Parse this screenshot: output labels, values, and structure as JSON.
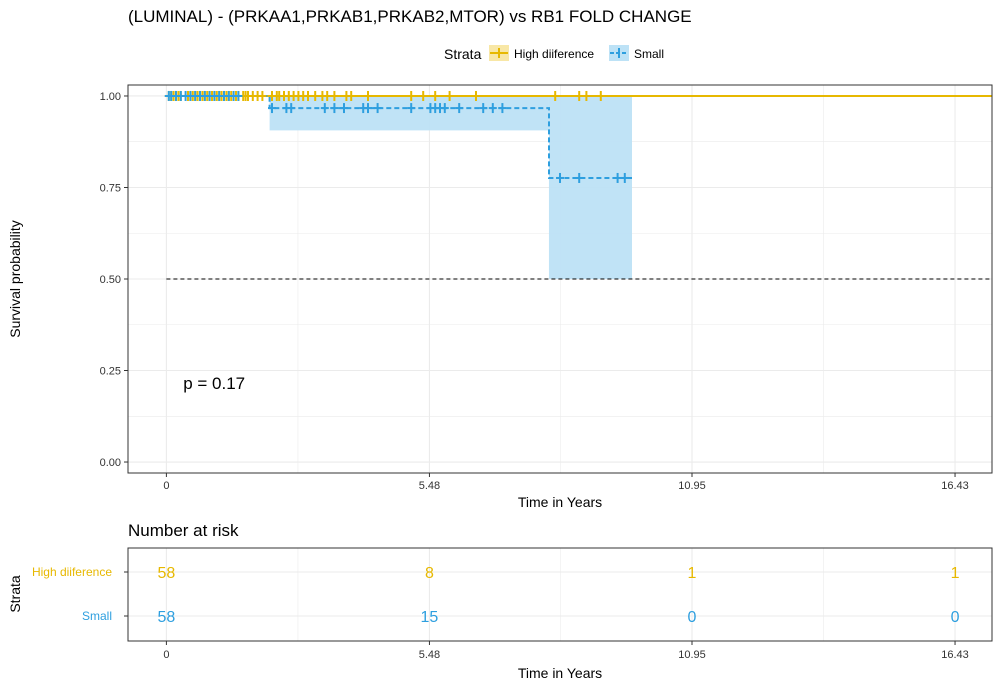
{
  "colors": {
    "high": "#E7B800",
    "small": "#2E9FDF",
    "small_ci": "#BDE2F6",
    "high_ci": "#F8E7A6",
    "grid": "#ebebeb"
  },
  "chart_data": {
    "type": "line",
    "subtype": "kaplan-meier",
    "title": "(LUMINAL) - (PRKAA1,PRKAB1,PRKAB2,MTOR) vs RB1 FOLD CHANGE",
    "xlabel": "Time in Years",
    "ylabel": "Survival probability",
    "xlim": [
      -0.8,
      17.2
    ],
    "ylim": [
      -0.03,
      1.03
    ],
    "x_ticks": [
      0,
      5.48,
      10.95,
      16.43
    ],
    "x_tick_labels": [
      "0",
      "5.48",
      "10.95",
      "16.43"
    ],
    "y_ticks": [
      0,
      0.25,
      0.5,
      0.75,
      1.0
    ],
    "y_tick_labels": [
      "0.00",
      "0.25",
      "0.50",
      "0.75",
      "1.00"
    ],
    "grid": true,
    "legend": {
      "title": "Strata",
      "position": "top",
      "entries": [
        "High diiference",
        "Small"
      ]
    },
    "reference_line": {
      "y": 0.5,
      "style": "dashed"
    },
    "pvalue_text": "p = 0.17",
    "pvalue_pos": {
      "x": 0.35,
      "y": 0.2
    },
    "series": [
      {
        "name": "High diiference",
        "color_key": "high",
        "dash": false,
        "steps": [
          [
            0,
            1.0
          ],
          [
            17.2,
            1.0
          ]
        ],
        "ci": [],
        "censors": [
          0.05,
          0.1,
          0.15,
          0.2,
          0.25,
          0.3,
          0.45,
          0.5,
          0.55,
          0.6,
          0.65,
          0.7,
          0.75,
          0.8,
          0.85,
          0.9,
          0.95,
          1.0,
          1.05,
          1.1,
          1.15,
          1.2,
          1.25,
          1.3,
          1.35,
          1.45,
          1.5,
          1.6,
          1.65,
          1.7,
          1.8,
          1.9,
          2.0,
          2.2,
          2.3,
          2.35,
          2.45,
          2.55,
          2.65,
          2.75,
          2.85,
          2.95,
          3.1,
          3.25,
          3.35,
          3.5,
          3.75,
          3.85,
          4.2,
          5.1,
          5.35,
          5.6,
          5.9,
          6.45,
          8.1,
          8.6,
          8.75,
          9.05
        ]
      },
      {
        "name": "Small",
        "color_key": "small",
        "dash": true,
        "steps": [
          [
            0,
            1.0
          ],
          [
            2.15,
            1.0
          ],
          [
            2.15,
            0.967
          ],
          [
            7.97,
            0.967
          ],
          [
            7.97,
            0.776
          ],
          [
            9.7,
            0.776
          ]
        ],
        "ci": [
          [
            0,
            1.0,
            1.0
          ],
          [
            2.15,
            0.906,
            1.0
          ],
          [
            7.97,
            0.5,
            1.0
          ],
          [
            9.7,
            0.5,
            1.0
          ]
        ],
        "censors": [
          0.05,
          0.1,
          0.2,
          0.3,
          0.4,
          0.5,
          0.6,
          0.7,
          0.8,
          0.9,
          1.0,
          1.1,
          1.2,
          1.3,
          1.4,
          1.5,
          2.2,
          2.5,
          2.6,
          3.3,
          3.5,
          3.7,
          4.1,
          4.2,
          4.4,
          5.1,
          5.5,
          5.6,
          5.7,
          5.8,
          6.1,
          6.6,
          6.8,
          7.0,
          8.2,
          8.6,
          9.4,
          9.55
        ]
      }
    ]
  },
  "risk_table": {
    "title": "Number at risk",
    "ylabel": "Strata",
    "xlabel": "Time in Years",
    "x_ticks": [
      0,
      5.48,
      10.95,
      16.43
    ],
    "x_tick_labels": [
      "0",
      "5.48",
      "10.95",
      "16.43"
    ],
    "rows": [
      {
        "name": "High diiference",
        "color_key": "high",
        "values": [
          "58",
          "8",
          "1",
          "1"
        ]
      },
      {
        "name": "Small",
        "color_key": "small",
        "values": [
          "58",
          "15",
          "0",
          "0"
        ]
      }
    ]
  }
}
